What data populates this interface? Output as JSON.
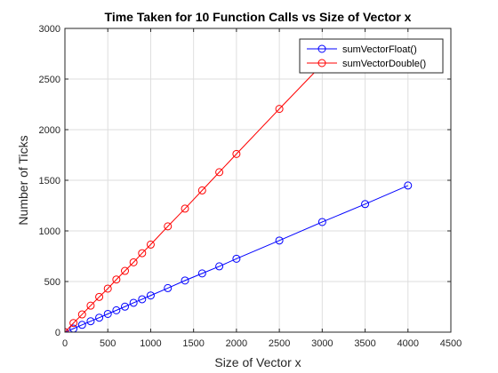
{
  "chart_data": {
    "type": "line",
    "title": "Time Taken for 10 Function Calls vs Size of Vector x",
    "xlabel": "Size of Vector x",
    "ylabel": "Number of Ticks",
    "xlim": [
      0,
      4500
    ],
    "ylim": [
      0,
      3000
    ],
    "xticks": [
      0,
      500,
      1000,
      1500,
      2000,
      2500,
      3000,
      3500,
      4000,
      4500
    ],
    "yticks": [
      0,
      500,
      1000,
      1500,
      2000,
      2500,
      3000
    ],
    "grid": true,
    "legend_position": "top-right",
    "series": [
      {
        "name": "sumVectorFloat()",
        "color": "#0000ff",
        "marker": "circle",
        "x": [
          0,
          100,
          200,
          300,
          400,
          500,
          600,
          700,
          800,
          900,
          1000,
          1200,
          1400,
          1600,
          1800,
          2000,
          2500,
          3000,
          3500,
          4000
        ],
        "y": [
          0,
          35,
          72,
          108,
          143,
          180,
          216,
          252,
          290,
          325,
          362,
          435,
          510,
          580,
          650,
          725,
          905,
          1088,
          1265,
          1448
        ]
      },
      {
        "name": "sumVectorDouble()",
        "color": "#ff0000",
        "marker": "circle",
        "x": [
          0,
          100,
          200,
          300,
          400,
          500,
          600,
          700,
          800,
          900,
          1000,
          1200,
          1400,
          1600,
          1800,
          2000,
          2500,
          3000
        ],
        "y": [
          0,
          90,
          175,
          262,
          348,
          430,
          520,
          605,
          690,
          780,
          865,
          1045,
          1220,
          1400,
          1580,
          1760,
          2205,
          2645
        ]
      }
    ]
  }
}
